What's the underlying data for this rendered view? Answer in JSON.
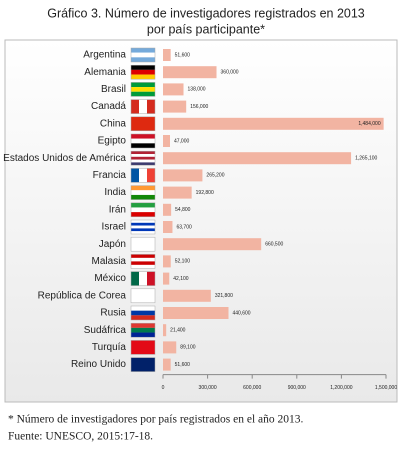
{
  "chart_data": {
    "type": "bar",
    "orientation": "horizontal",
    "title": "Gráfico 3. Número de investigadores registrados en 2013",
    "subtitle": "por país participante*",
    "categories": [
      "Argentina",
      "Alemania",
      "Brasil",
      "Canadá",
      "China",
      "Egipto",
      "Estados Unidos de América",
      "Francia",
      "India",
      "Irán",
      "Israel",
      "Japón",
      "Malasia",
      "México",
      "República de Corea",
      "Rusia",
      "Sudáfrica",
      "Turquía",
      "Reino Unido"
    ],
    "values": [
      51600,
      360000,
      138000,
      156000,
      1484000,
      47000,
      1265100,
      265200,
      192800,
      54800,
      63700,
      660500,
      52100,
      42100,
      321800,
      440600,
      21400,
      89100,
      51600
    ],
    "value_labels": [
      "51,600",
      "360,000",
      "138,000",
      "156,000",
      "1,484,000",
      "47,000",
      "1,265,100",
      "265,200",
      "192,800",
      "54,800",
      "63,700",
      "660,500",
      "52,100",
      "42,100",
      "321,800",
      "440,600",
      "21,400",
      "89,100",
      "51,600"
    ],
    "color": "#f2b4a2",
    "xlim": [
      0,
      1500000
    ],
    "xticks": [
      0,
      {
        "value": 300000,
        "label": "300,000"
      },
      {
        "value": 600000,
        "label": "600,000"
      },
      {
        "value": 900000,
        "label": "900,000"
      },
      {
        "value": 1200000,
        "label": "1,200,000"
      },
      {
        "value": 1500000,
        "label": "1,500,000"
      }
    ],
    "grid": false,
    "footnote": "*  Número de investigadores por país registrados en el año 2013.",
    "source": "Fuente: UNESCO, 2015:17-18."
  }
}
